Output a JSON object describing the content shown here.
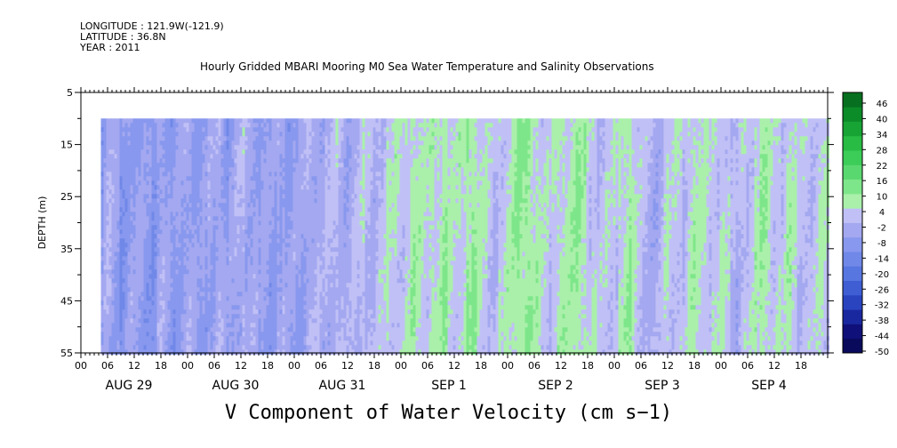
{
  "header": {
    "longitude": "LONGITUDE : 121.9W(-121.9)",
    "latitude": "LATITUDE : 36.8N",
    "year": "YEAR : 2011"
  },
  "chart_data": {
    "type": "heatmap",
    "title": "Hourly Gridded MBARI Mooring M0 Sea Water Temperature and Salinity Observations",
    "bottom_title": "V Component of Water Velocity (cm s−1)",
    "ylabel": "DEPTH (m)",
    "y_ticks": [
      5,
      15,
      25,
      35,
      45,
      55
    ],
    "ylim": [
      5,
      55
    ],
    "y_reversed": true,
    "data_depth_range": [
      10,
      55
    ],
    "x_start_hour": 0,
    "x_end_hour": 168,
    "data_start_hour": 4.5,
    "hour_tick_labels": [
      "00",
      "06",
      "12",
      "18"
    ],
    "date_labels": [
      "AUG 29",
      "AUG 30",
      "AUG 31",
      "SEP  1",
      "SEP  2",
      "SEP  3",
      "SEP  4"
    ],
    "colorbar_labels": [
      "46",
      "40",
      "34",
      "28",
      "22",
      "16",
      "10",
      "4",
      "-2",
      "-8",
      "-14",
      "-20",
      "-26",
      "-32",
      "-38",
      "-44",
      "-50"
    ],
    "colorbar_range": [
      -50,
      50
    ],
    "column_mean_profile": [
      {
        "hour": 4,
        "v": -6
      },
      {
        "hour": 6,
        "v": -2
      },
      {
        "hour": 9,
        "v": -9
      },
      {
        "hour": 12,
        "v": -4
      },
      {
        "hour": 15,
        "v": -10
      },
      {
        "hour": 18,
        "v": -3
      },
      {
        "hour": 21,
        "v": -8
      },
      {
        "hour": 24,
        "v": -4
      },
      {
        "hour": 27,
        "v": -7
      },
      {
        "hour": 30,
        "v": -2
      },
      {
        "hour": 33,
        "v": -6
      },
      {
        "hour": 36,
        "v": 1
      },
      {
        "hour": 39,
        "v": -5
      },
      {
        "hour": 42,
        "v": -7
      },
      {
        "hour": 45,
        "v": -3
      },
      {
        "hour": 48,
        "v": -6
      },
      {
        "hour": 51,
        "v": 2
      },
      {
        "hour": 54,
        "v": -4
      },
      {
        "hour": 57,
        "v": 1
      },
      {
        "hour": 60,
        "v": -3
      },
      {
        "hour": 63,
        "v": 3
      },
      {
        "hour": 66,
        "v": 0
      },
      {
        "hour": 69,
        "v": 6
      },
      {
        "hour": 72,
        "v": 3
      },
      {
        "hour": 75,
        "v": 9
      },
      {
        "hour": 78,
        "v": 5
      },
      {
        "hour": 81,
        "v": 10
      },
      {
        "hour": 84,
        "v": 4
      },
      {
        "hour": 87,
        "v": 11
      },
      {
        "hour": 90,
        "v": 6
      },
      {
        "hour": 93,
        "v": 2
      },
      {
        "hour": 96,
        "v": 8
      },
      {
        "hour": 99,
        "v": 12
      },
      {
        "hour": 102,
        "v": 7
      },
      {
        "hour": 105,
        "v": 3
      },
      {
        "hour": 108,
        "v": 6
      },
      {
        "hour": 111,
        "v": 10
      },
      {
        "hour": 114,
        "v": 5
      },
      {
        "hour": 117,
        "v": 1
      },
      {
        "hour": 120,
        "v": 4
      },
      {
        "hour": 123,
        "v": 9
      },
      {
        "hour": 126,
        "v": 3
      },
      {
        "hour": 129,
        "v": -1
      },
      {
        "hour": 132,
        "v": 5
      },
      {
        "hour": 135,
        "v": 2
      },
      {
        "hour": 138,
        "v": 7
      },
      {
        "hour": 141,
        "v": 3
      },
      {
        "hour": 144,
        "v": 6
      },
      {
        "hour": 147,
        "v": -2
      },
      {
        "hour": 150,
        "v": 4
      },
      {
        "hour": 153,
        "v": 8
      },
      {
        "hour": 156,
        "v": 3
      },
      {
        "hour": 159,
        "v": 6
      },
      {
        "hour": 162,
        "v": 2
      },
      {
        "hour": 165,
        "v": 4
      },
      {
        "hour": 168,
        "v": 3
      }
    ]
  },
  "colors": {
    "colorbar": [
      "#0a0a5c",
      "#10107a",
      "#1a28a0",
      "#2a44c0",
      "#3f5ed4",
      "#5876e0",
      "#7088e8",
      "#8898ee",
      "#a4a8f0",
      "#c0c0f6",
      "#aaf0aa",
      "#7ee68a",
      "#5ad870",
      "#3ccc58",
      "#28bc44",
      "#18a434",
      "#0c8c28",
      "#067020"
    ]
  }
}
